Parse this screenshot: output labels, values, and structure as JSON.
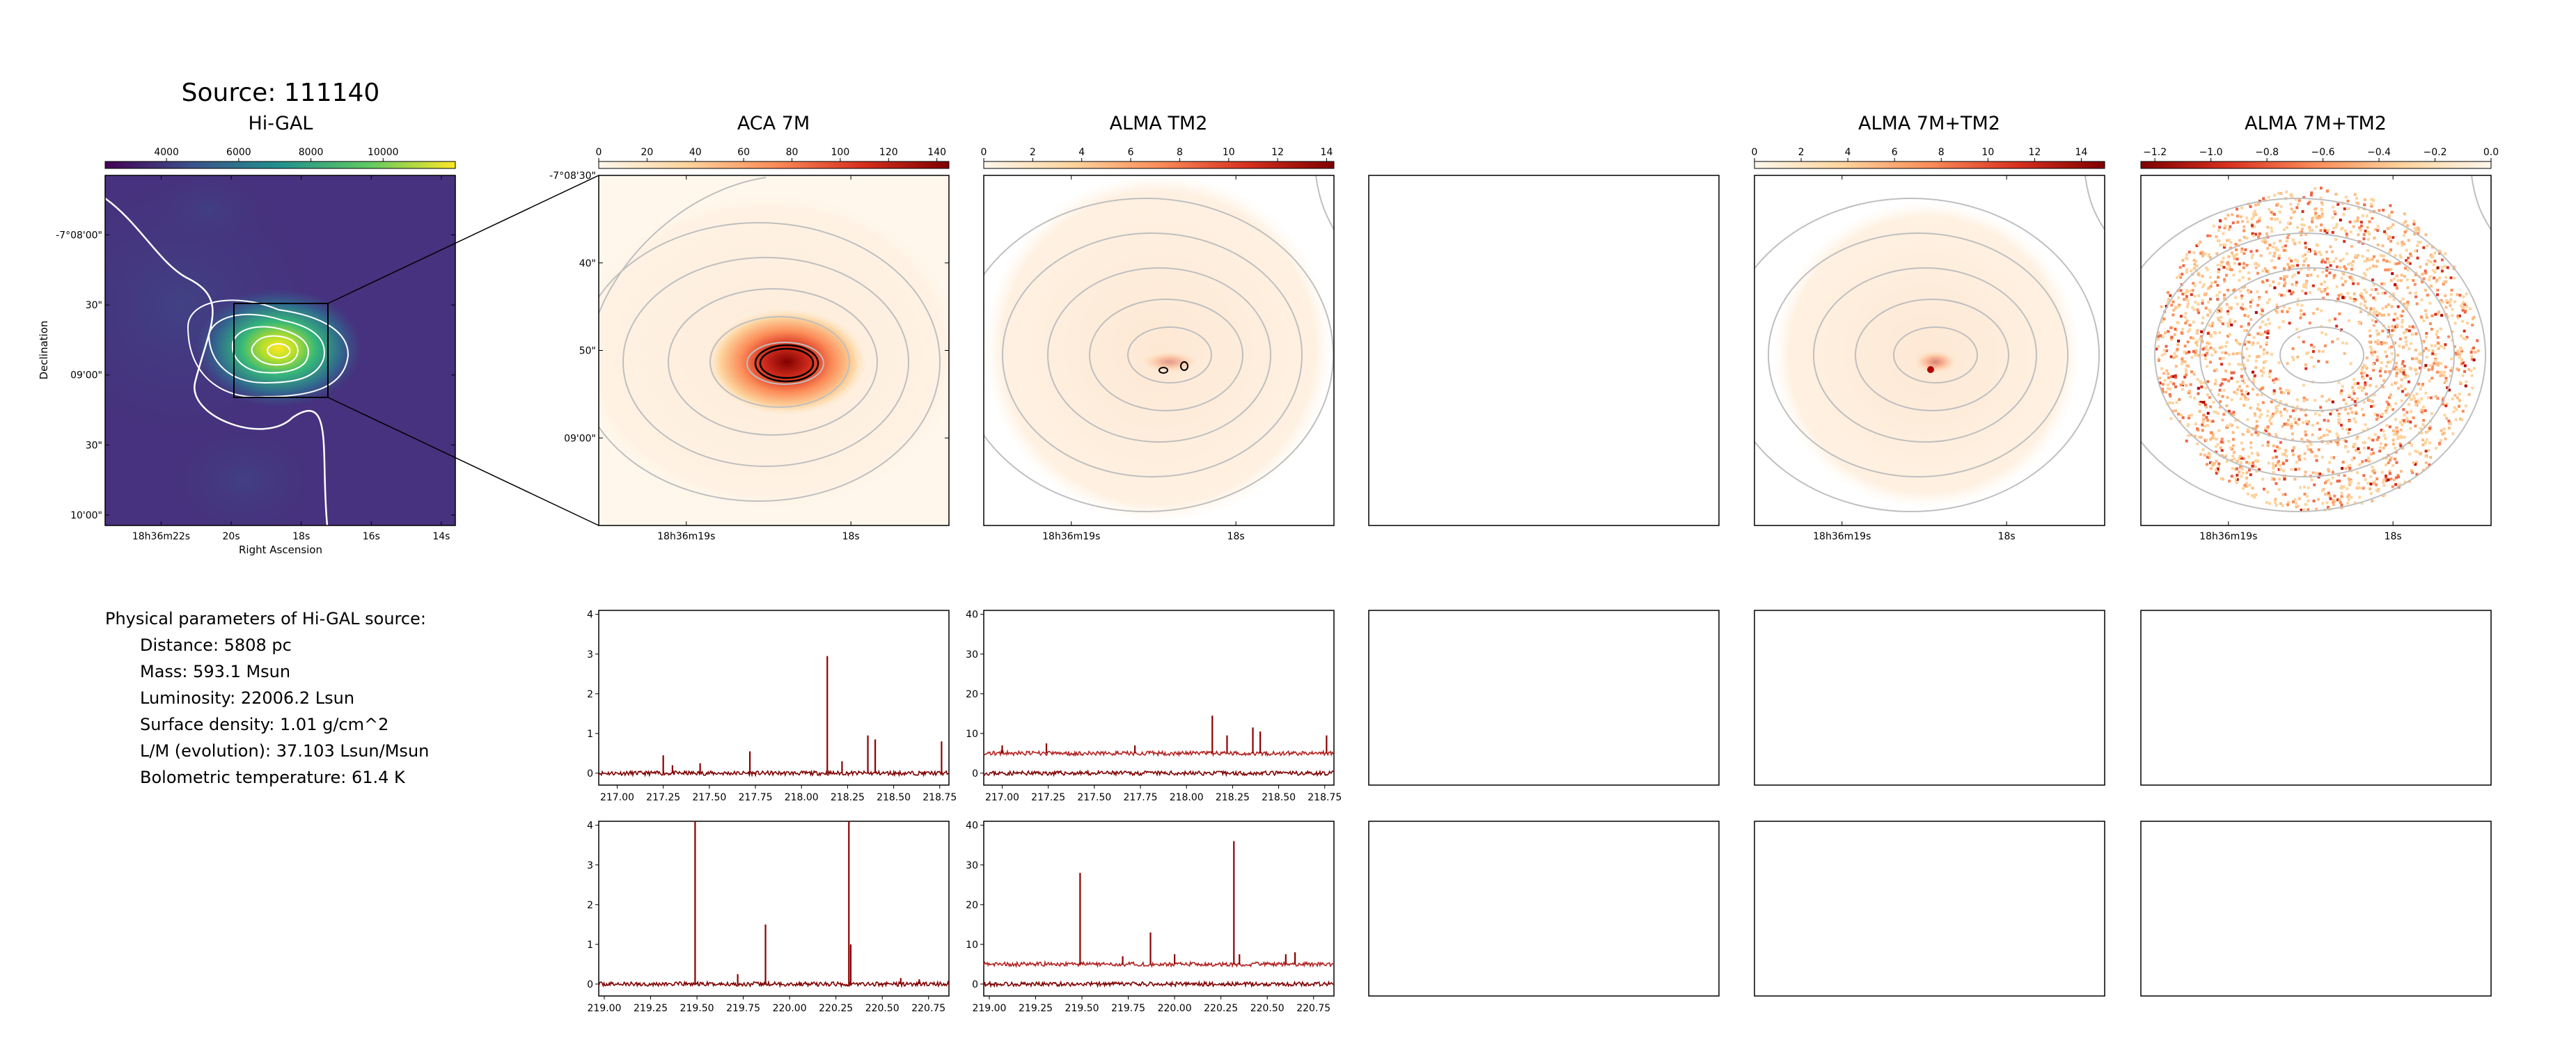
{
  "figure": {
    "title": "Source: 111140"
  },
  "params": {
    "header": "Physical parameters of Hi-GAL source:",
    "lines": [
      "Distance: 5808 pc",
      "Mass: 593.1 Msun",
      "Luminosity: 22006.2 Lsun",
      "Surface density: 1.01 g/cm^2",
      "L/M (evolution): 37.103 Lsun/Msun",
      "Bolometric temperature: 61.4 K"
    ]
  },
  "colors": {
    "viridis": [
      "#440154",
      "#3b528b",
      "#21918c",
      "#5ec962",
      "#fde725"
    ],
    "orrd": [
      "#fff7ec",
      "#fdd49e",
      "#fc8d59",
      "#d7301f",
      "#7f0000"
    ],
    "spectrum": "#8b0000",
    "contour_white": "#ffffff",
    "contour_grey": "#bfbfbf"
  },
  "chart_data": [
    {
      "id": "higal",
      "type": "heatmap",
      "title": "Hi-GAL",
      "colormap": "viridis",
      "colorbar_ticks": [
        "4000",
        "6000",
        "8000",
        "10000"
      ],
      "colorbar_range": [
        2300,
        12000
      ],
      "colorbar_tick_values": [
        4000,
        6000,
        8000,
        10000
      ],
      "xlabel": "Right Ascension",
      "ylabel": "Declination",
      "xticks": [
        "18h36m22s",
        "20s",
        "18s",
        "16s",
        "14s"
      ],
      "yticks": [
        "-7°08'00\"",
        "30\"",
        "09'00\"",
        "30\"",
        "10'00\""
      ],
      "peak_value": 11000
    },
    {
      "id": "aca7m",
      "type": "heatmap",
      "title": "ACA 7M",
      "colormap": "OrRd",
      "colorbar_ticks": [
        "0",
        "20",
        "40",
        "60",
        "80",
        "100",
        "120",
        "140"
      ],
      "colorbar_range": [
        0,
        145
      ],
      "yticks": [
        "-7°08'30\"",
        "40\"",
        "50\"",
        "09'00\""
      ],
      "xticks": [
        "18h36m19s",
        "18s"
      ]
    },
    {
      "id": "tm2",
      "type": "heatmap",
      "title": "ALMA TM2",
      "colormap": "OrRd",
      "colorbar_ticks": [
        "0",
        "2",
        "4",
        "6",
        "8",
        "10",
        "12",
        "14"
      ],
      "colorbar_range": [
        0,
        14.3
      ],
      "xticks": [
        "18h36m19s",
        "18s"
      ]
    },
    {
      "id": "empty_map",
      "type": "heatmap",
      "title": ""
    },
    {
      "id": "combo",
      "type": "heatmap",
      "title": "ALMA 7M+TM2",
      "colormap": "OrRd",
      "colorbar_ticks": [
        "0",
        "2",
        "4",
        "6",
        "8",
        "10",
        "12",
        "14"
      ],
      "colorbar_range": [
        0,
        15
      ],
      "xticks": [
        "18h36m19s",
        "18s"
      ]
    },
    {
      "id": "combo_neg",
      "type": "heatmap",
      "title": "ALMA 7M+TM2",
      "colormap": "OrRd_r",
      "colorbar_ticks": [
        "−1.2",
        "−1.0",
        "−0.8",
        "−0.6",
        "−0.4",
        "−0.2",
        "0.0"
      ],
      "colorbar_range": [
        -1.25,
        0.0
      ],
      "xticks": [
        "18h36m19s",
        "18s"
      ]
    },
    {
      "id": "spec_aca_1",
      "type": "line",
      "x_range": [
        216.9,
        218.8
      ],
      "ylim": [
        -0.3,
        4.1
      ],
      "xticks": [
        "217.00",
        "217.25",
        "217.50",
        "217.75",
        "218.00",
        "218.25",
        "218.50",
        "218.75"
      ],
      "yticks": [
        "0",
        "1",
        "2",
        "3",
        "4"
      ],
      "baselines": [
        0.0
      ],
      "lines": [
        [
          217.25,
          0.45
        ],
        [
          217.3,
          0.2
        ],
        [
          217.45,
          0.25
        ],
        [
          217.72,
          0.55
        ],
        [
          218.14,
          2.95
        ],
        [
          218.22,
          0.3
        ],
        [
          218.36,
          0.95
        ],
        [
          218.4,
          0.85
        ],
        [
          218.76,
          0.8
        ]
      ]
    },
    {
      "id": "spec_tm2_1",
      "type": "line",
      "x_range": [
        216.9,
        218.8
      ],
      "ylim": [
        -3,
        41
      ],
      "xticks": [
        "217.00",
        "217.25",
        "217.50",
        "217.75",
        "218.00",
        "218.25",
        "218.50",
        "218.75"
      ],
      "yticks": [
        "0",
        "10",
        "20",
        "30",
        "40"
      ],
      "baselines": [
        0.0,
        5.0
      ],
      "lines": [
        [
          217.0,
          7.0
        ],
        [
          217.24,
          7.5
        ],
        [
          217.72,
          7.0
        ],
        [
          218.14,
          14.5
        ],
        [
          218.22,
          9.5
        ],
        [
          218.36,
          11.5
        ],
        [
          218.4,
          10.5
        ],
        [
          218.76,
          9.5
        ]
      ]
    },
    {
      "id": "spec_aca_2",
      "type": "line",
      "x_range": [
        218.97,
        220.86
      ],
      "ylim": [
        -0.3,
        4.1
      ],
      "xticks": [
        "219.00",
        "219.25",
        "219.50",
        "219.75",
        "220.00",
        "220.25",
        "220.50",
        "220.75"
      ],
      "yticks": [
        "0",
        "1",
        "2",
        "3",
        "4"
      ],
      "baselines": [
        0.0
      ],
      "lines": [
        [
          219.49,
          4.2
        ],
        [
          219.72,
          0.25
        ],
        [
          219.87,
          1.5
        ],
        [
          220.32,
          4.2
        ],
        [
          220.33,
          1.0
        ],
        [
          220.6,
          0.15
        ],
        [
          220.7,
          0.12
        ]
      ]
    },
    {
      "id": "spec_tm2_2",
      "type": "line",
      "x_range": [
        218.97,
        220.86
      ],
      "ylim": [
        -3,
        41
      ],
      "xticks": [
        "219.00",
        "219.25",
        "219.50",
        "219.75",
        "220.00",
        "220.25",
        "220.50",
        "220.75"
      ],
      "yticks": [
        "0",
        "10",
        "20",
        "30",
        "40"
      ],
      "baselines": [
        0.0,
        5.0
      ],
      "lines": [
        [
          219.49,
          28.0
        ],
        [
          219.72,
          7.0
        ],
        [
          219.87,
          13.0
        ],
        [
          220.0,
          7.5
        ],
        [
          220.32,
          36.0
        ],
        [
          220.35,
          7.5
        ],
        [
          220.6,
          7.5
        ],
        [
          220.65,
          8.0
        ]
      ]
    }
  ]
}
